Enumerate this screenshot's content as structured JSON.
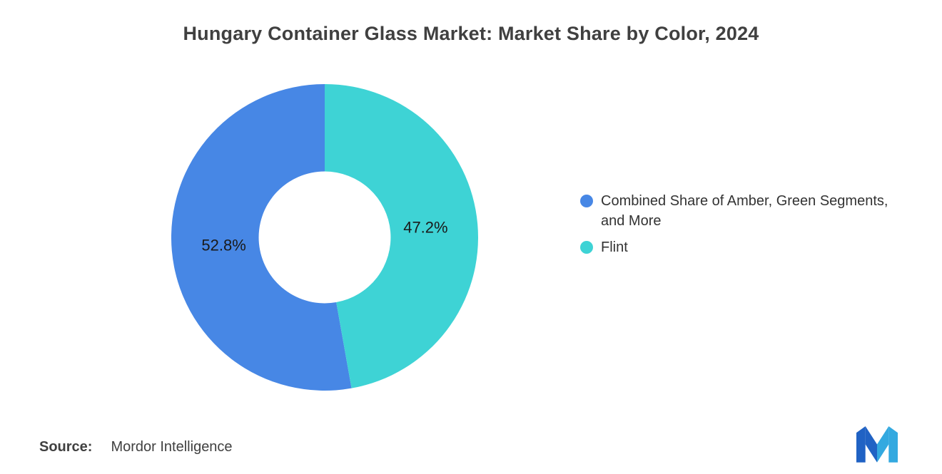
{
  "chart_data": {
    "type": "pie",
    "subtype": "donut",
    "title": "Hungary Container Glass Market: Market Share by Color, 2024",
    "slices": [
      {
        "label": "Combined Share of Amber, Green Segments,\nand More",
        "value": 52.8,
        "display": "52.8%",
        "color": "#4787E5"
      },
      {
        "label": "Flint",
        "value": 47.2,
        "display": "47.2%",
        "color": "#3ED3D5"
      }
    ],
    "start_angle_deg": -90,
    "direction": "counterclockwise",
    "inner_radius_ratio": 0.43,
    "label_radius_ratio": 0.66,
    "legend_position": "right",
    "value_label_color": "#1a1a1a"
  },
  "source": {
    "label": "Source:",
    "value": "Mordor Intelligence"
  },
  "logo": {
    "name": "Mordor Intelligence",
    "dark_color": "#2062C4",
    "light_color": "#33A9E0"
  }
}
